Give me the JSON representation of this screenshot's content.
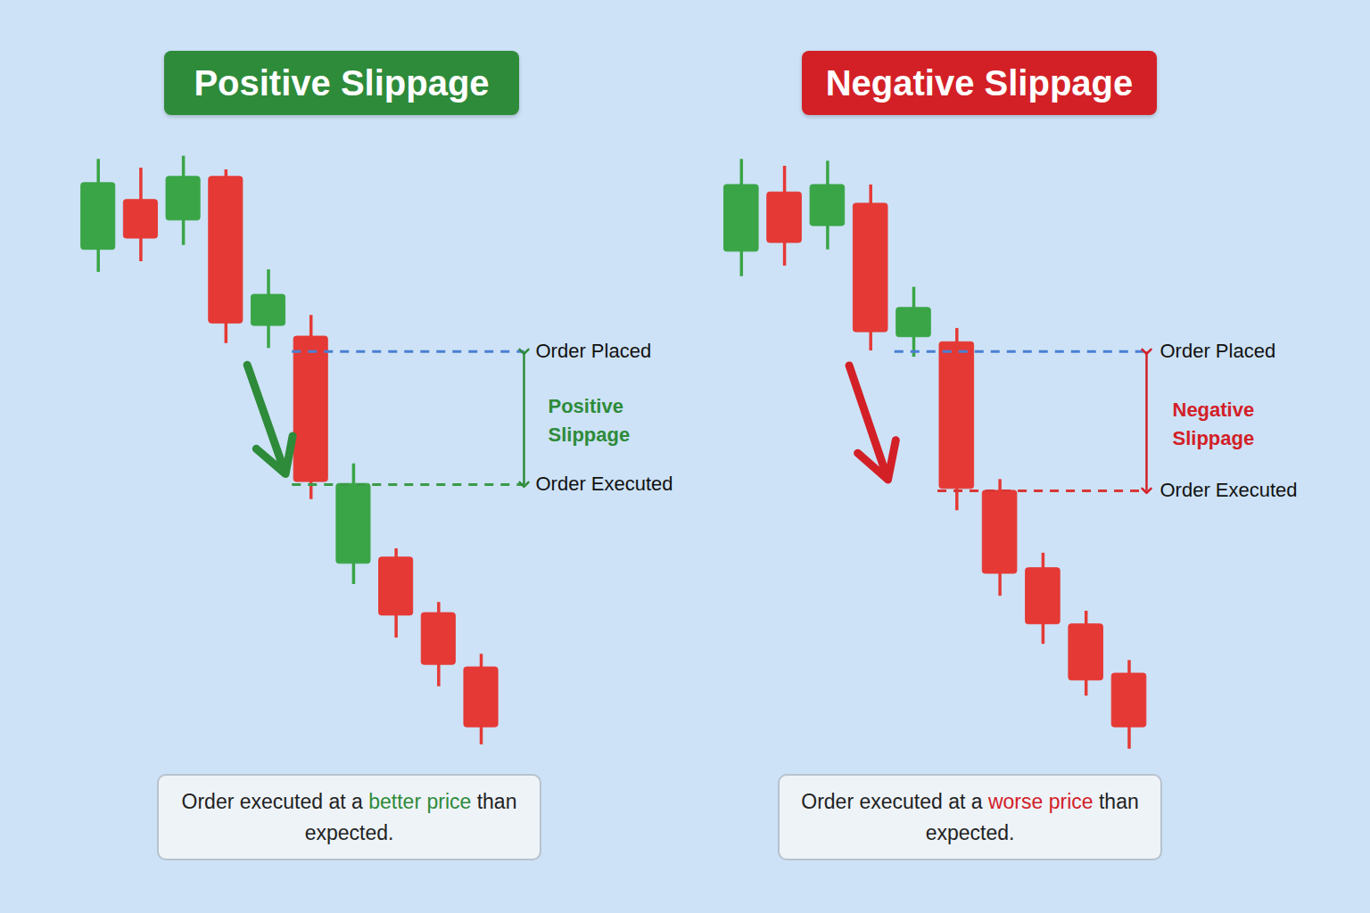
{
  "chart_data": [
    {
      "type": "candlestick",
      "title": "Positive Slippage",
      "x": [
        1,
        2,
        3,
        4,
        5,
        6,
        7,
        8,
        9,
        10
      ],
      "open": [
        82.9,
        90.9,
        87.6,
        94.6,
        70.7,
        69.0,
        32.6,
        33.6,
        24.7,
        16.0
      ],
      "high": [
        97.4,
        96.0,
        97.9,
        95.7,
        79.7,
        72.4,
        48.6,
        35.0,
        26.4,
        18.1
      ],
      "low": [
        79.3,
        81.0,
        83.6,
        67.9,
        67.1,
        42.9,
        29.3,
        20.7,
        12.9,
        3.6
      ],
      "close": [
        93.6,
        84.7,
        94.6,
        71.1,
        75.7,
        45.7,
        45.4,
        24.3,
        16.4,
        6.4
      ],
      "colors": [
        "#3aa547",
        "#e53935",
        "#3aa547",
        "#e53935",
        "#3aa547",
        "#e53935",
        "#3aa547",
        "#e53935",
        "#e53935",
        "#e53935"
      ],
      "xlim": [
        -1.3,
        14.8
      ],
      "ylim": [
        0,
        100
      ],
      "tick_labels": false,
      "annotations": {
        "order_placed": {
          "label": "Order Placed",
          "value": 66.6,
          "color": "#4a7fd4"
        },
        "order_executed": {
          "label": "Order Executed",
          "value": 45.3,
          "color": "#3a9a48"
        },
        "slippage": {
          "label": "Positive Slippage",
          "color": "#2e8b3a"
        }
      },
      "caption": "Order executed at a better price than expected.",
      "caption_highlight": "better price"
    },
    {
      "type": "candlestick",
      "title": "Negative Slippage",
      "x": [
        1,
        2,
        3,
        4,
        5,
        6,
        7,
        8,
        9,
        10
      ],
      "open": [
        82.6,
        92.1,
        86.7,
        90.3,
        68.9,
        68.1,
        44.3,
        31.9,
        22.9,
        15.0
      ],
      "high": [
        97.4,
        96.3,
        97.1,
        93.3,
        76.9,
        70.3,
        46.1,
        34.3,
        25.0,
        17.1
      ],
      "low": [
        78.6,
        80.3,
        82.9,
        66.7,
        65.7,
        41.1,
        27.4,
        19.7,
        11.4,
        2.9
      ],
      "close": [
        93.3,
        84.0,
        93.3,
        69.7,
        73.6,
        44.6,
        31.0,
        22.9,
        13.9,
        6.4
      ],
      "colors": [
        "#3aa547",
        "#e53935",
        "#3aa547",
        "#e53935",
        "#3aa547",
        "#e53935",
        "#e53935",
        "#e53935",
        "#e53935",
        "#e53935"
      ],
      "xlim": [
        -0.3,
        15.6
      ],
      "ylim": [
        0,
        100
      ],
      "tick_labels": false,
      "annotations": {
        "order_placed": {
          "label": "Order Placed",
          "value": 66.6,
          "color": "#4a7fd4"
        },
        "order_executed": {
          "label": "Order Executed",
          "value": 44.3,
          "color": "#d93636"
        },
        "slippage": {
          "label": "Negative Slippage",
          "color": "#d32027"
        }
      },
      "caption": "Order executed at a worse price than expected.",
      "caption_highlight": "worse price"
    }
  ]
}
